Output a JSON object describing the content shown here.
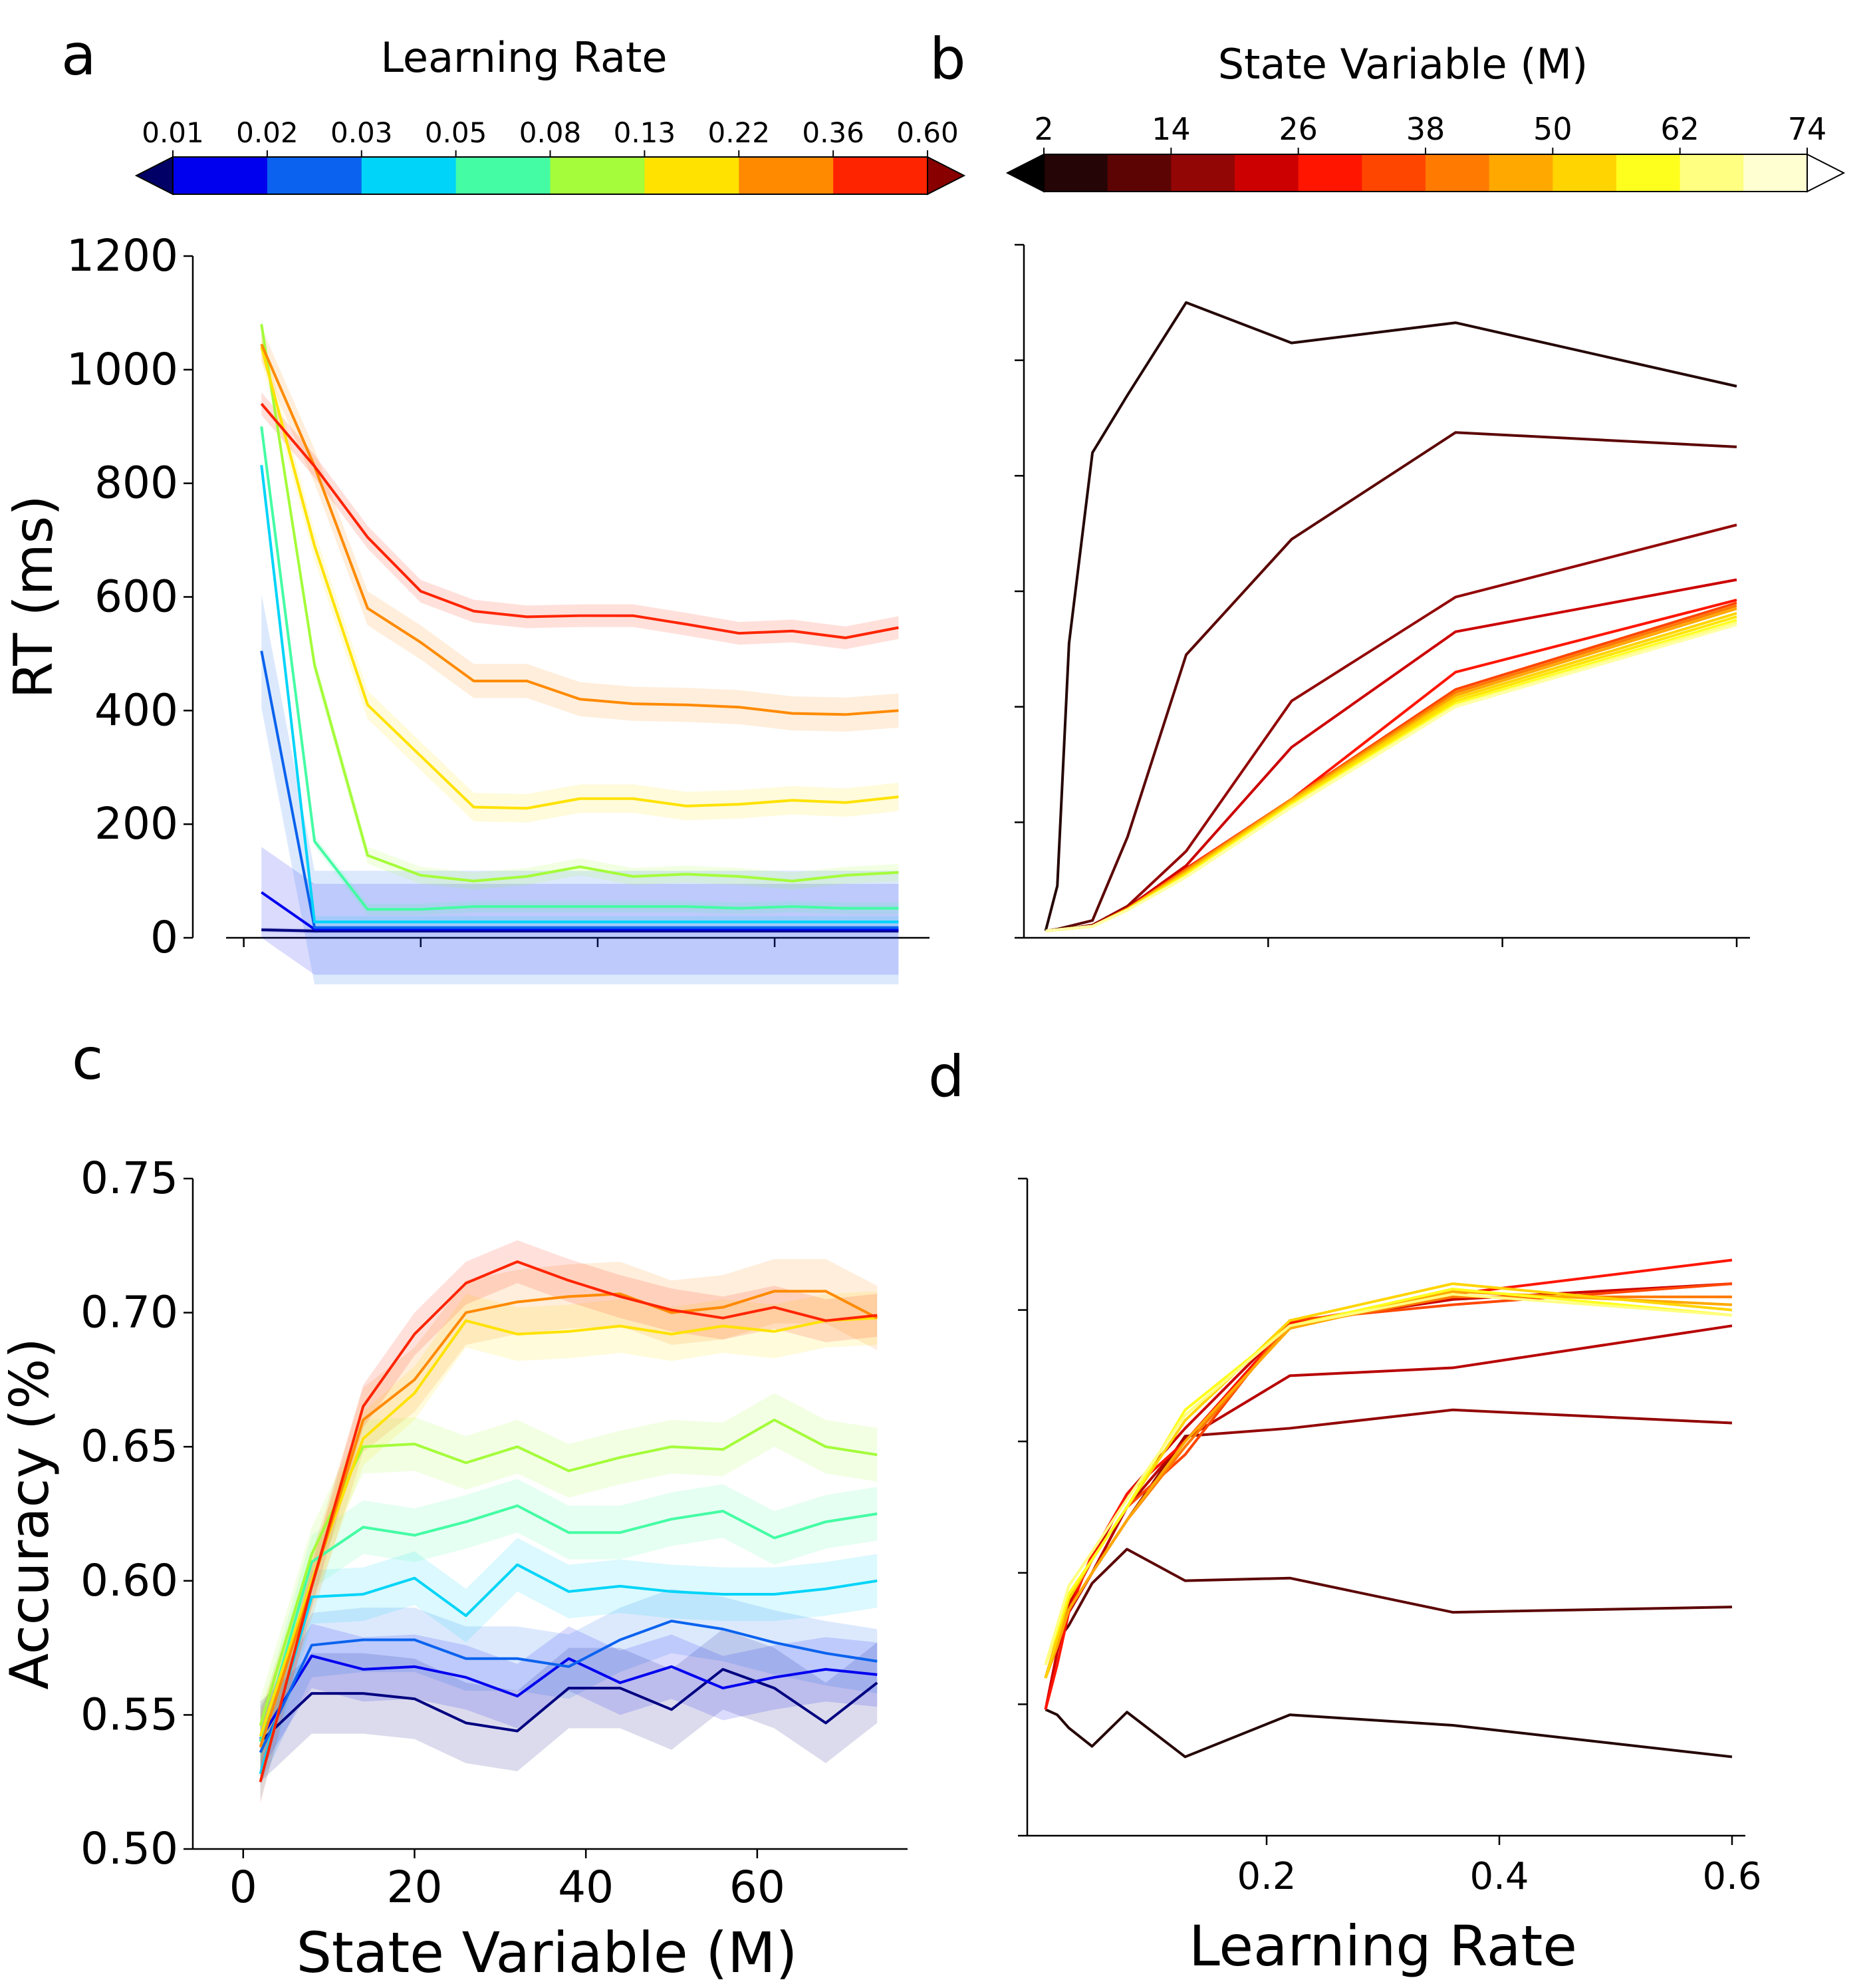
{
  "panel_labels": {
    "a": "a",
    "b": "b",
    "c": "c",
    "d": "d"
  },
  "colorbars": {
    "learning_rate": {
      "title": "Learning Rate",
      "ticks": [
        "0.01",
        "0.02",
        "0.03",
        "0.05",
        "0.08",
        "0.13",
        "0.22",
        "0.36",
        "0.60"
      ],
      "colors": [
        "#0000ee",
        "#0a62ee",
        "#00d4f8",
        "#44fca4",
        "#a4fc3a",
        "#ffe200",
        "#ff8a00",
        "#ff2400"
      ],
      "under": "#000066",
      "over": "#880000"
    },
    "state_variable": {
      "title": "State Variable (M)",
      "ticks": [
        "2",
        "14",
        "26",
        "38",
        "50",
        "62",
        "74"
      ],
      "colors": [
        "#250505",
        "#5c0404",
        "#930606",
        "#cc0000",
        "#ff1500",
        "#ff4600",
        "#ff7a00",
        "#ffa800",
        "#ffd400",
        "#ffff1e",
        "#ffff82",
        "#ffffd2"
      ],
      "under": "#000000",
      "over": "#ffffff"
    }
  },
  "chart_data": [
    {
      "id": "a",
      "type": "line",
      "title": "",
      "xlabel": "",
      "ylabel": "RT (ms)",
      "xlim": [
        -2,
        76
      ],
      "ylim": [
        0,
        1200
      ],
      "xticks": [
        0,
        20,
        40,
        60
      ],
      "xtick_labels_visible": false,
      "yticks": [
        0,
        200,
        400,
        600,
        800,
        1000,
        1200
      ],
      "ytick_labels": [
        "0",
        "200",
        "400",
        "600",
        "800",
        "1000",
        "1200"
      ],
      "x": [
        2,
        8,
        14,
        20,
        26,
        32,
        38,
        44,
        50,
        56,
        62,
        68,
        74
      ],
      "series": [
        {
          "name": "0.01",
          "color": "#000080",
          "values": [
            14,
            12,
            12,
            12,
            12,
            12,
            12,
            12,
            12,
            12,
            12,
            12,
            12
          ],
          "band": 4
        },
        {
          "name": "0.02",
          "color": "#0000ee",
          "values": [
            80,
            15,
            15,
            15,
            15,
            15,
            15,
            15,
            15,
            15,
            15,
            15,
            15
          ],
          "band": 80
        },
        {
          "name": "0.03",
          "color": "#0a62ee",
          "values": [
            505,
            18,
            18,
            18,
            18,
            18,
            18,
            18,
            18,
            18,
            18,
            18,
            18
          ],
          "band": 100
        },
        {
          "name": "0.05",
          "color": "#00d4f8",
          "values": [
            832,
            28,
            28,
            28,
            28,
            28,
            28,
            28,
            28,
            28,
            28,
            28,
            28
          ],
          "band": 10
        },
        {
          "name": "0.08",
          "color": "#44fca4",
          "values": [
            900,
            170,
            50,
            50,
            55,
            55,
            55,
            55,
            55,
            52,
            55,
            52,
            52
          ],
          "band": 10
        },
        {
          "name": "0.13",
          "color": "#a4fc3a",
          "values": [
            1080,
            480,
            145,
            110,
            100,
            108,
            125,
            108,
            112,
            108,
            100,
            110,
            115
          ],
          "band": 15
        },
        {
          "name": "0.22",
          "color": "#ffe200",
          "values": [
            1040,
            690,
            410,
            320,
            230,
            228,
            245,
            245,
            232,
            235,
            242,
            238,
            248
          ],
          "band": 25
        },
        {
          "name": "0.36",
          "color": "#ff8a00",
          "values": [
            1045,
            830,
            580,
            520,
            452,
            452,
            420,
            412,
            410,
            406,
            395,
            393,
            400
          ],
          "band": 30
        },
        {
          "name": "0.60",
          "color": "#ff2400",
          "values": [
            940,
            830,
            705,
            610,
            575,
            565,
            567,
            567,
            552,
            536,
            540,
            528,
            546
          ],
          "band": 20
        }
      ]
    },
    {
      "id": "b",
      "type": "line",
      "title": "",
      "xlabel": "",
      "ylabel": "",
      "xlim": [
        0,
        0.6
      ],
      "ylim": [
        0,
        1200
      ],
      "xticks": [
        0.2,
        0.4,
        0.6
      ],
      "yticks": [
        0,
        200,
        400,
        600,
        800,
        1000,
        1200
      ],
      "tick_labels_visible": false,
      "x": [
        0.01,
        0.02,
        0.03,
        0.05,
        0.08,
        0.13,
        0.22,
        0.36,
        0.6
      ],
      "series": [
        {
          "name": "2",
          "color": "#250505",
          "values": [
            12,
            90,
            510,
            840,
            940,
            1100,
            1030,
            1065,
            955
          ]
        },
        {
          "name": "8",
          "color": "#5c0404",
          "values": [
            12,
            15,
            20,
            30,
            175,
            490,
            690,
            875,
            850
          ]
        },
        {
          "name": "14",
          "color": "#930606",
          "values": [
            12,
            14,
            16,
            22,
            55,
            150,
            410,
            590,
            715
          ]
        },
        {
          "name": "20",
          "color": "#cc0000",
          "values": [
            12,
            14,
            16,
            20,
            52,
            125,
            330,
            530,
            620
          ]
        },
        {
          "name": "26",
          "color": "#ff1500",
          "values": [
            12,
            14,
            16,
            20,
            50,
            120,
            240,
            460,
            585
          ]
        },
        {
          "name": "32",
          "color": "#ff4600",
          "values": [
            12,
            14,
            16,
            20,
            50,
            118,
            240,
            430,
            580
          ]
        },
        {
          "name": "38",
          "color": "#ff7a00",
          "values": [
            12,
            14,
            16,
            20,
            50,
            118,
            240,
            425,
            575
          ]
        },
        {
          "name": "44",
          "color": "#ffa800",
          "values": [
            12,
            14,
            16,
            20,
            50,
            115,
            238,
            420,
            570
          ]
        },
        {
          "name": "50",
          "color": "#ffd400",
          "values": [
            12,
            14,
            16,
            20,
            50,
            112,
            235,
            415,
            562
          ]
        },
        {
          "name": "56",
          "color": "#ffe600",
          "values": [
            12,
            14,
            16,
            20,
            48,
            110,
            232,
            410,
            556
          ]
        },
        {
          "name": "62",
          "color": "#ffff1e",
          "values": [
            12,
            14,
            16,
            20,
            48,
            108,
            230,
            405,
            550
          ]
        },
        {
          "name": "68",
          "color": "#ffff82",
          "values": [
            12,
            14,
            16,
            20,
            48,
            106,
            228,
            402,
            546
          ]
        },
        {
          "name": "74",
          "color": "#ffffa8",
          "values": [
            12,
            14,
            16,
            20,
            48,
            105,
            226,
            400,
            542
          ]
        }
      ]
    },
    {
      "id": "c",
      "type": "line",
      "title": "",
      "xlabel": "State Variable (M)",
      "ylabel": "Accuracy (%)",
      "xlim": [
        -2,
        76
      ],
      "ylim": [
        0.5,
        0.75
      ],
      "xticks": [
        0,
        20,
        40,
        60
      ],
      "xtick_labels": [
        "0",
        "20",
        "40",
        "60"
      ],
      "yticks": [
        0.5,
        0.55,
        0.6,
        0.65,
        0.7,
        0.75
      ],
      "ytick_labels": [
        "0.50",
        "0.55",
        "0.60",
        "0.65",
        "0.70",
        "0.75"
      ],
      "x": [
        2,
        8,
        14,
        20,
        26,
        32,
        38,
        44,
        50,
        56,
        62,
        68,
        74
      ],
      "series": [
        {
          "name": "0.01",
          "color": "#000080",
          "values": [
            0.54,
            0.558,
            0.558,
            0.556,
            0.547,
            0.544,
            0.56,
            0.56,
            0.552,
            0.567,
            0.56,
            0.547,
            0.562
          ],
          "band": 0.015
        },
        {
          "name": "0.02",
          "color": "#0000ee",
          "values": [
            0.541,
            0.572,
            0.567,
            0.568,
            0.564,
            0.557,
            0.571,
            0.562,
            0.568,
            0.56,
            0.564,
            0.567,
            0.565
          ],
          "band": 0.012
        },
        {
          "name": "0.03",
          "color": "#0a62ee",
          "values": [
            0.536,
            0.576,
            0.578,
            0.578,
            0.571,
            0.571,
            0.568,
            0.578,
            0.585,
            0.582,
            0.577,
            0.573,
            0.57
          ],
          "band": 0.012
        },
        {
          "name": "0.05",
          "color": "#00d4f8",
          "values": [
            0.528,
            0.594,
            0.595,
            0.601,
            0.587,
            0.606,
            0.596,
            0.598,
            0.596,
            0.595,
            0.595,
            0.597,
            0.6
          ],
          "band": 0.01
        },
        {
          "name": "0.08",
          "color": "#44fca4",
          "values": [
            0.54,
            0.607,
            0.62,
            0.617,
            0.622,
            0.628,
            0.618,
            0.618,
            0.623,
            0.626,
            0.616,
            0.622,
            0.625
          ],
          "band": 0.01
        },
        {
          "name": "0.13",
          "color": "#a4fc3a",
          "values": [
            0.546,
            0.61,
            0.65,
            0.651,
            0.644,
            0.65,
            0.641,
            0.646,
            0.65,
            0.649,
            0.66,
            0.65,
            0.647
          ],
          "band": 0.01
        },
        {
          "name": "0.22",
          "color": "#ffe200",
          "values": [
            0.542,
            0.6,
            0.653,
            0.67,
            0.697,
            0.692,
            0.693,
            0.695,
            0.692,
            0.695,
            0.693,
            0.697,
            0.698
          ],
          "band": 0.01
        },
        {
          "name": "0.36",
          "color": "#ff8a00",
          "values": [
            0.538,
            0.598,
            0.66,
            0.675,
            0.7,
            0.704,
            0.706,
            0.707,
            0.7,
            0.702,
            0.708,
            0.708,
            0.698
          ],
          "band": 0.012
        },
        {
          "name": "0.60",
          "color": "#ff2400",
          "values": [
            0.525,
            0.598,
            0.665,
            0.692,
            0.711,
            0.719,
            0.712,
            0.706,
            0.701,
            0.698,
            0.702,
            0.697,
            0.699
          ],
          "band": 0.008
        }
      ]
    },
    {
      "id": "d",
      "type": "line",
      "title": "",
      "xlabel": "Learning Rate",
      "ylabel": "",
      "xlim": [
        0,
        0.6
      ],
      "ylim": [
        0.5,
        0.75
      ],
      "xticks": [
        0.2,
        0.4,
        0.6
      ],
      "xtick_labels": [
        "0.2",
        "0.4",
        "0.6"
      ],
      "yticks": [
        0.5,
        0.55,
        0.6,
        0.65,
        0.7,
        0.75
      ],
      "ytick_labels_visible": false,
      "x": [
        0.01,
        0.02,
        0.03,
        0.05,
        0.08,
        0.13,
        0.22,
        0.36,
        0.6
      ],
      "series": [
        {
          "name": "2",
          "color": "#250505",
          "values": [
            0.548,
            0.546,
            0.541,
            0.534,
            0.547,
            0.53,
            0.546,
            0.542,
            0.53
          ]
        },
        {
          "name": "8",
          "color": "#5c0404",
          "values": [
            0.56,
            0.574,
            0.58,
            0.596,
            0.609,
            0.597,
            0.598,
            0.585,
            0.587
          ]
        },
        {
          "name": "14",
          "color": "#930606",
          "values": [
            0.56,
            0.575,
            0.585,
            0.6,
            0.62,
            0.652,
            0.655,
            0.662,
            0.657
          ]
        },
        {
          "name": "20",
          "color": "#b80202",
          "values": [
            0.56,
            0.575,
            0.585,
            0.6,
            0.625,
            0.651,
            0.675,
            0.678,
            0.694
          ]
        },
        {
          "name": "26",
          "color": "#cc0000",
          "values": [
            0.548,
            0.57,
            0.588,
            0.605,
            0.63,
            0.655,
            0.695,
            0.704,
            0.71
          ]
        },
        {
          "name": "32",
          "color": "#ff1500",
          "values": [
            0.548,
            0.565,
            0.585,
            0.607,
            0.63,
            0.65,
            0.695,
            0.706,
            0.719
          ]
        },
        {
          "name": "38",
          "color": "#ff4600",
          "values": [
            0.56,
            0.575,
            0.59,
            0.605,
            0.625,
            0.645,
            0.696,
            0.702,
            0.71
          ]
        },
        {
          "name": "44",
          "color": "#ff7a00",
          "values": [
            0.56,
            0.572,
            0.586,
            0.6,
            0.62,
            0.648,
            0.694,
            0.705,
            0.705
          ]
        },
        {
          "name": "50",
          "color": "#ffa800",
          "values": [
            0.56,
            0.572,
            0.586,
            0.6,
            0.62,
            0.65,
            0.693,
            0.707,
            0.702
          ]
        },
        {
          "name": "56",
          "color": "#ffd400",
          "values": [
            0.56,
            0.575,
            0.59,
            0.605,
            0.625,
            0.658,
            0.696,
            0.71,
            0.7
          ]
        },
        {
          "name": "62",
          "color": "#ffff1e",
          "values": [
            0.565,
            0.578,
            0.592,
            0.605,
            0.625,
            0.662,
            0.694,
            0.708,
            0.698
          ]
        },
        {
          "name": "68",
          "color": "#ffff82",
          "values": [
            0.565,
            0.58,
            0.595,
            0.608,
            0.628,
            0.66,
            0.694,
            0.706,
            0.698
          ]
        }
      ]
    }
  ]
}
